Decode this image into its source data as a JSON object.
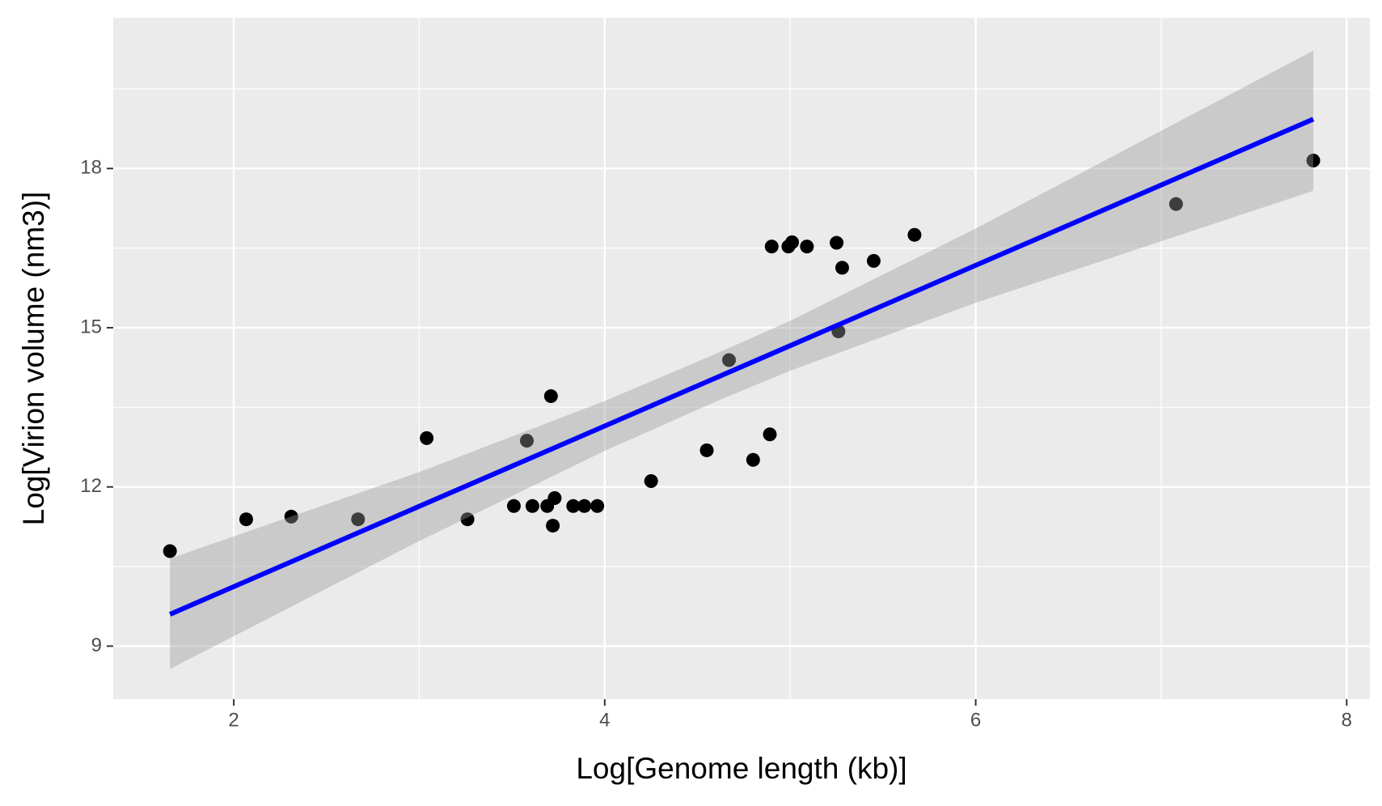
{
  "chart_data": {
    "type": "scatter",
    "x_label": "Log[Genome length (kb)]",
    "y_label": "Log[Virion volume (nm3)]",
    "x": [
      1.656,
      2.067,
      2.31,
      2.67,
      3.04,
      3.26,
      3.51,
      3.58,
      3.61,
      3.69,
      3.71,
      3.72,
      3.73,
      3.83,
      3.89,
      3.96,
      4.25,
      4.55,
      4.67,
      4.8,
      4.89,
      4.9,
      4.99,
      5.01,
      5.09,
      5.25,
      5.26,
      5.28,
      5.45,
      5.67,
      7.08,
      7.82
    ],
    "values": [
      10.79,
      11.39,
      11.44,
      11.39,
      12.92,
      11.39,
      11.64,
      12.87,
      11.64,
      11.64,
      13.71,
      11.27,
      11.79,
      11.64,
      11.64,
      11.64,
      12.11,
      12.69,
      14.39,
      12.51,
      12.99,
      16.53,
      16.53,
      16.61,
      16.53,
      16.6,
      14.93,
      16.13,
      16.26,
      16.75,
      17.33,
      18.15
    ],
    "color": "#000000",
    "fit": {
      "x": [
        1.656,
        7.82
      ],
      "y": [
        9.6,
        18.93
      ],
      "color": "#0000ff"
    },
    "ci_band": {
      "x": [
        1.656,
        3,
        4,
        4.6,
        5,
        6,
        7.82
      ],
      "upper": [
        10.65,
        12.28,
        13.62,
        14.51,
        15.13,
        16.87,
        20.22
      ],
      "lower": [
        8.57,
        10.98,
        12.68,
        13.61,
        14.19,
        15.47,
        17.58
      ],
      "color": "#999999"
    },
    "xlim": [
      1.35,
      8.125
    ],
    "ylim": [
      8.0,
      20.84
    ],
    "xticks": [
      2,
      4,
      6,
      8
    ],
    "yticks": [
      9,
      12,
      15,
      18
    ],
    "minor_xticks": [
      3,
      5,
      7
    ],
    "minor_yticks": [
      10.5,
      13.5,
      16.5,
      19.5
    ],
    "grid": true
  }
}
